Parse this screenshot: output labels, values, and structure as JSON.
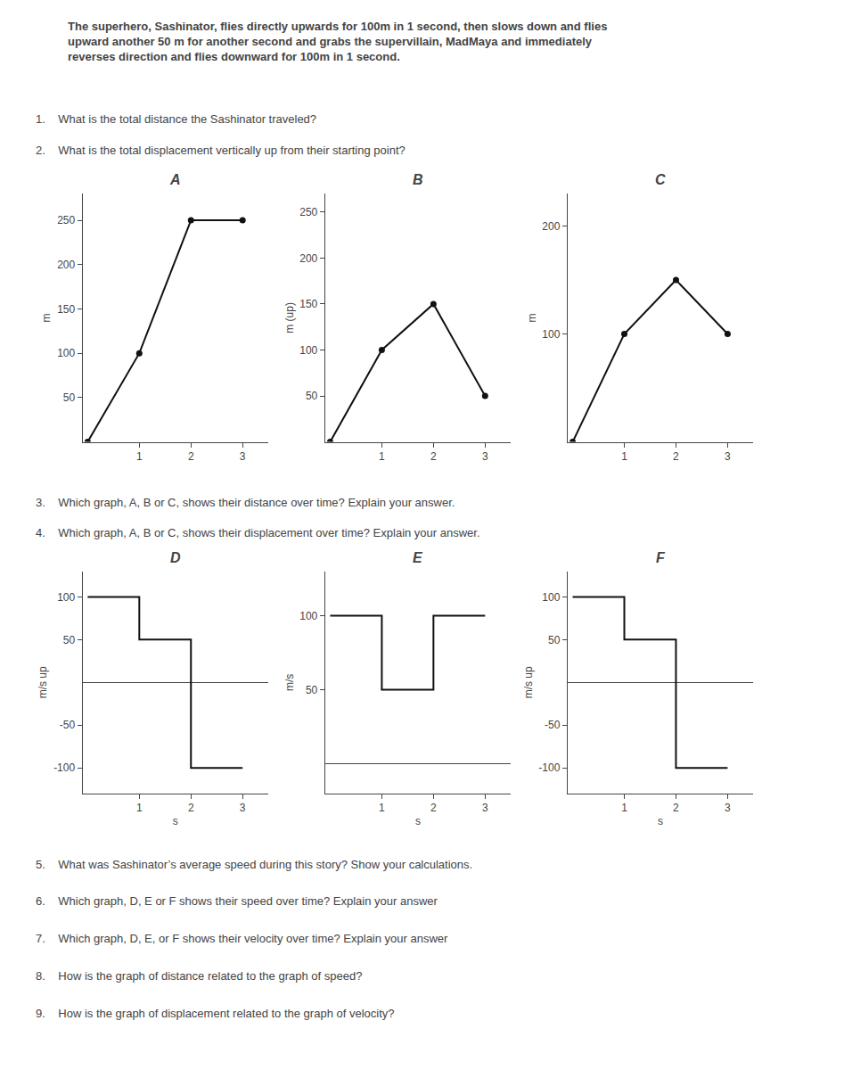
{
  "title": [
    "The superhero, Sashinator, flies directly upwards for 100m in 1 second, then slows down and flies",
    "upward another 50 m for another second and grabs the supervillain, MadMaya and immediately",
    "reverses direction and flies downward for 100m in 1 second."
  ],
  "annotations": [
    "1.    What is the total distance the Sashinator traveled?",
    "2.    What is the total displacement vertically up from their starting point?",
    "3.    Which graph, A, B or C, shows their distance over time? Explain your answer.",
    "4.    Which graph, A, B or C, shows their displacement over time? Explain your answer.",
    "5.    What was Sashinator’s average speed during this story? Show your calculations.",
    "6.    Which graph, D, E or F shows their speed over time? Explain your answer",
    "7.    Which graph, D, E, or F shows their velocity over time? Explain your answer",
    "8.    How is the graph of distance related to the graph of speed?",
    "9.    How is the graph of displacement related to the graph of velocity?"
  ],
  "chart_data": [
    {
      "type": "line",
      "title": "A",
      "ylabel": "m",
      "x": [
        0,
        1,
        2,
        3
      ],
      "values": [
        0,
        100,
        250,
        250
      ],
      "xlim": [
        -0.1,
        3.5
      ],
      "ylim": [
        0,
        280
      ],
      "xticks": [
        1,
        2,
        3
      ],
      "yticks": [
        50,
        100,
        150,
        200,
        250
      ],
      "color": "#111111",
      "marker": "circle",
      "grid": false
    },
    {
      "type": "line",
      "title": "B",
      "ylabel": "m (up)",
      "x": [
        0,
        1,
        2,
        3
      ],
      "values": [
        0,
        100,
        150,
        50
      ],
      "xlim": [
        -0.1,
        3.5
      ],
      "ylim": [
        0,
        270
      ],
      "xticks": [
        1,
        2,
        3
      ],
      "yticks": [
        50,
        100,
        150,
        200,
        250
      ],
      "color": "#111111",
      "marker": "circle",
      "grid": false
    },
    {
      "type": "line",
      "title": "C",
      "ylabel": "m",
      "x": [
        0,
        1,
        2,
        3
      ],
      "values": [
        0,
        100,
        150,
        100
      ],
      "xlim": [
        -0.1,
        3.5
      ],
      "ylim": [
        0,
        230
      ],
      "xticks": [
        1,
        2,
        3
      ],
      "yticks": [
        100,
        200
      ],
      "color": "#111111",
      "marker": "circle",
      "grid": false
    },
    {
      "type": "line",
      "title": "D",
      "ylabel": "m/s up",
      "xlabel": "s",
      "x": [
        0,
        1,
        1,
        2,
        2,
        3
      ],
      "values": [
        100,
        100,
        50,
        50,
        -100,
        -100
      ],
      "xlim": [
        -0.1,
        3.5
      ],
      "ylim": [
        -130,
        130
      ],
      "xticks": [
        1,
        2,
        3
      ],
      "yticks": [
        -100,
        -50,
        50,
        100
      ],
      "color": "#111111",
      "grid": false
    },
    {
      "type": "line",
      "title": "E",
      "ylabel": "m/s",
      "xlabel": "s",
      "x": [
        0,
        1,
        1,
        2,
        2,
        3
      ],
      "values": [
        100,
        100,
        50,
        50,
        100,
        100
      ],
      "xlim": [
        -0.1,
        3.5
      ],
      "ylim": [
        -20,
        130
      ],
      "xticks": [
        1,
        2,
        3
      ],
      "yticks": [
        50,
        100
      ],
      "color": "#111111",
      "grid": false
    },
    {
      "type": "line",
      "title": "F",
      "ylabel": "m/s up",
      "xlabel": "s",
      "x": [
        0,
        1,
        1,
        2,
        2,
        3
      ],
      "values": [
        100,
        100,
        50,
        50,
        -100,
        -100
      ],
      "xlim": [
        -0.1,
        3.5
      ],
      "ylim": [
        -130,
        130
      ],
      "xticks": [
        1,
        2,
        3
      ],
      "yticks": [
        -100,
        -50,
        50,
        100
      ],
      "color": "#111111",
      "grid": false
    }
  ]
}
